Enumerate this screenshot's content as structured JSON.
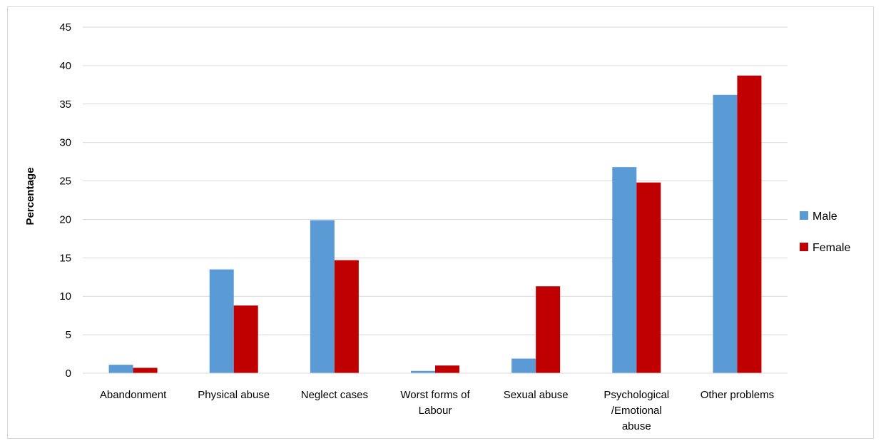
{
  "chart_data": {
    "type": "bar",
    "title": "",
    "xlabel": "",
    "ylabel": "Percentage",
    "ylim": [
      0,
      45
    ],
    "yticks": [
      0,
      5,
      10,
      15,
      20,
      25,
      30,
      35,
      40,
      45
    ],
    "grid": true,
    "legend_position": "right",
    "categories": [
      [
        "Abandonment"
      ],
      [
        "Physical abuse"
      ],
      [
        "Neglect cases"
      ],
      [
        "Worst forms of",
        "Labour"
      ],
      [
        "Sexual abuse"
      ],
      [
        "Psychological",
        "/Emotional",
        "abuse"
      ],
      [
        "Other problems"
      ]
    ],
    "series": [
      {
        "name": "Male",
        "color": "#5b9bd5",
        "values": [
          1.1,
          13.5,
          19.9,
          0.3,
          1.9,
          26.8,
          36.2
        ]
      },
      {
        "name": "Female",
        "color": "#c00000",
        "values": [
          0.7,
          8.8,
          14.7,
          1.0,
          11.3,
          24.8,
          38.7
        ]
      }
    ]
  }
}
